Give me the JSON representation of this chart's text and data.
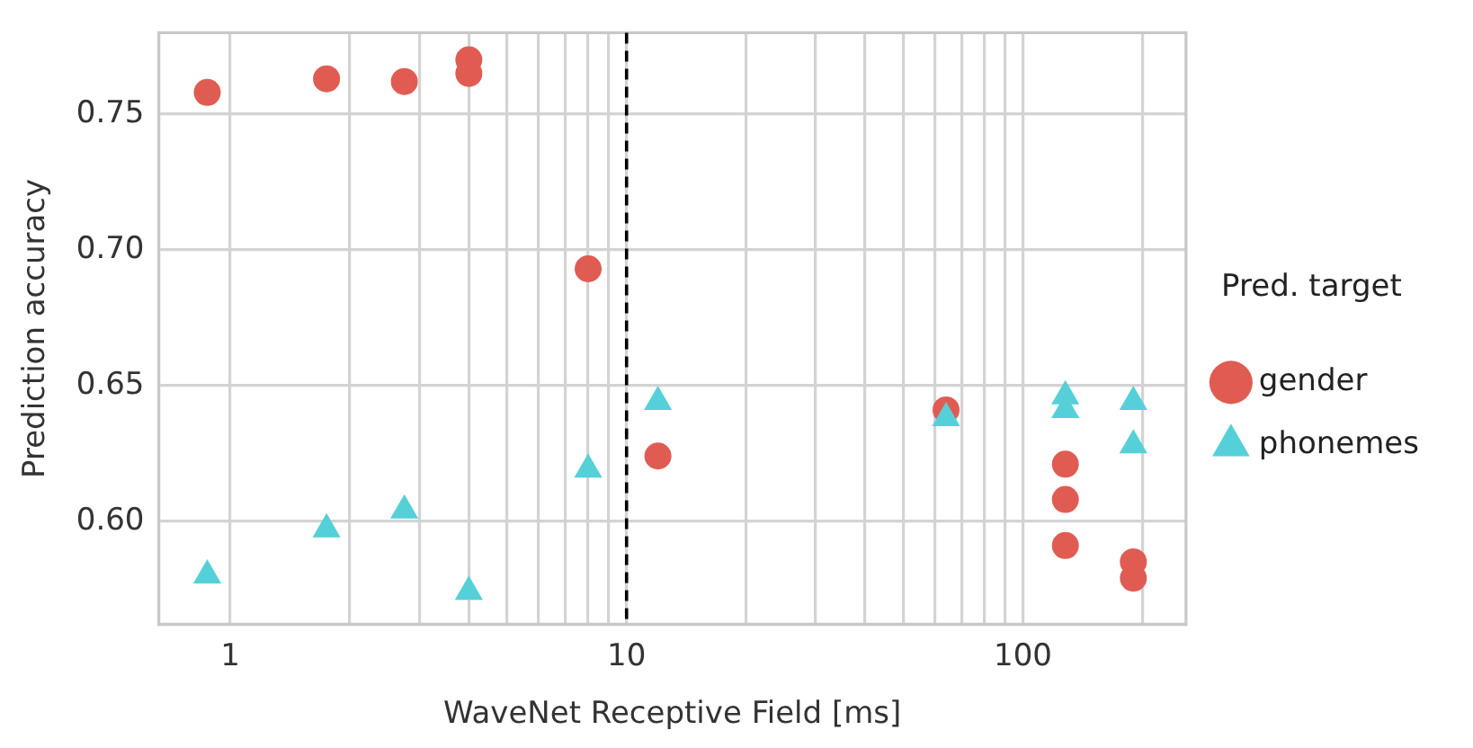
{
  "chart_data": {
    "type": "scatter",
    "xlabel": "WaveNet Receptive Field [ms]",
    "ylabel": "Prediction accuracy",
    "legend_title": "Pred. target",
    "legend": "right",
    "grid": true,
    "log": "x",
    "xlim": [
      0.66,
      258
    ],
    "ylim": [
      0.562,
      0.78
    ],
    "xticks": [
      1,
      {
        "value": 2,
        "label": null
      },
      {
        "value": 3,
        "label": null
      },
      {
        "value": 4,
        "label": null
      },
      {
        "value": 5,
        "label": null
      },
      {
        "value": 6,
        "label": null
      },
      {
        "value": 7,
        "label": null
      },
      {
        "value": 8,
        "label": null
      },
      {
        "value": 9,
        "label": null
      },
      10,
      {
        "value": 20,
        "label": null
      },
      {
        "value": 30,
        "label": null
      },
      {
        "value": 40,
        "label": null
      },
      {
        "value": 50,
        "label": null
      },
      {
        "value": 60,
        "label": null
      },
      {
        "value": 70,
        "label": null
      },
      {
        "value": 80,
        "label": null
      },
      {
        "value": 90,
        "label": null
      },
      100,
      {
        "value": 200,
        "label": null
      }
    ],
    "yticks": [
      {
        "value": 0.6,
        "label": "0.60"
      },
      0.65,
      {
        "value": 0.7,
        "label": "0.70"
      },
      0.75
    ],
    "ref_lines": [
      {
        "axis": "x",
        "value": 10,
        "color": "#000000",
        "line_style": "dashed"
      }
    ],
    "series": [
      {
        "name": "gender",
        "color": "#e05c52",
        "marker": "circle",
        "x": [
          0.875,
          1.75,
          2.75,
          4,
          4,
          8,
          12,
          64,
          128,
          128,
          128,
          190,
          190
        ],
        "values": [
          0.758,
          0.763,
          0.762,
          0.77,
          0.765,
          0.693,
          0.624,
          0.641,
          0.621,
          0.608,
          0.591,
          0.585,
          0.579
        ]
      },
      {
        "name": "phonemes",
        "color": "#55d0d8",
        "marker": "triangle",
        "x": [
          0.875,
          1.75,
          2.75,
          4,
          8,
          12,
          64,
          128,
          128,
          190,
          190
        ],
        "values": [
          0.58,
          0.597,
          0.604,
          0.574,
          0.619,
          0.644,
          0.638,
          0.646,
          0.641,
          0.644,
          0.628
        ]
      }
    ]
  }
}
